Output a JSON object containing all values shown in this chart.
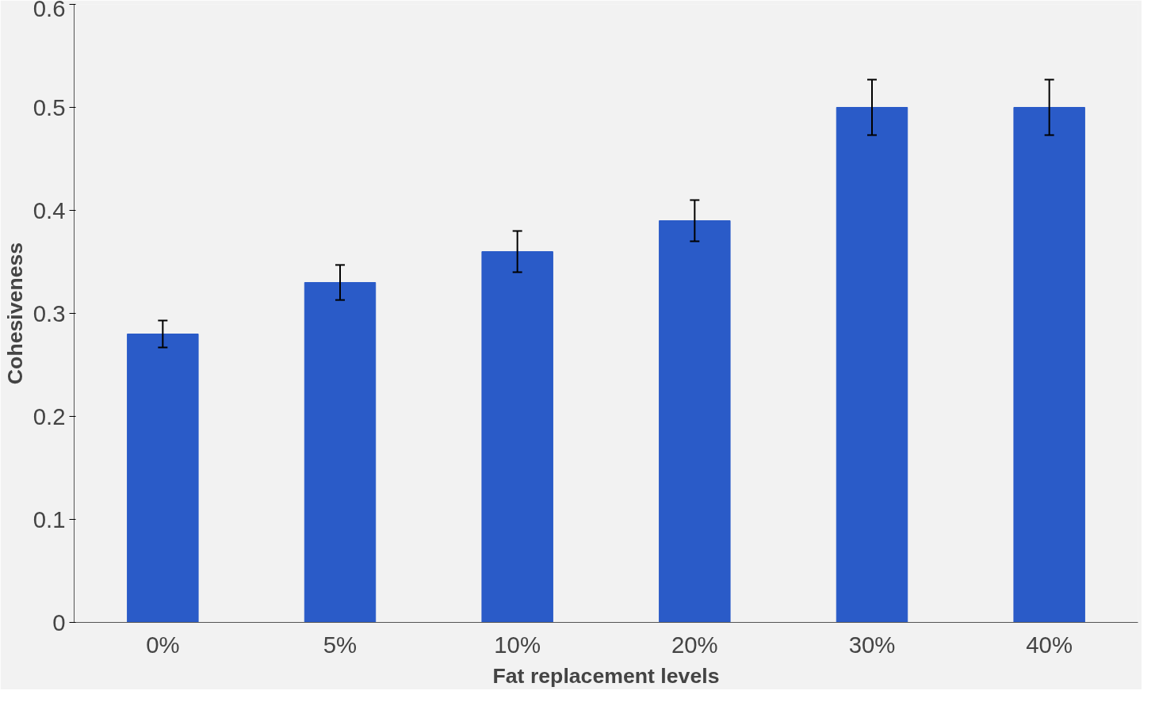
{
  "chart_data": {
    "type": "bar",
    "xlabel": "Fat replacement levels",
    "ylabel": "Cohesiveness",
    "categories": [
      "0%",
      "5%",
      "10%",
      "20%",
      "30%",
      "40%"
    ],
    "values": [
      0.28,
      0.33,
      0.36,
      0.39,
      0.5,
      0.5
    ],
    "errors": [
      0.013,
      0.017,
      0.02,
      0.02,
      0.027,
      0.027
    ],
    "color": "#2a5bc8",
    "ylim": [
      0,
      0.6
    ],
    "yticks": [
      0,
      0.1,
      0.2,
      0.3,
      0.4,
      0.5,
      0.6
    ],
    "grid": false
  }
}
